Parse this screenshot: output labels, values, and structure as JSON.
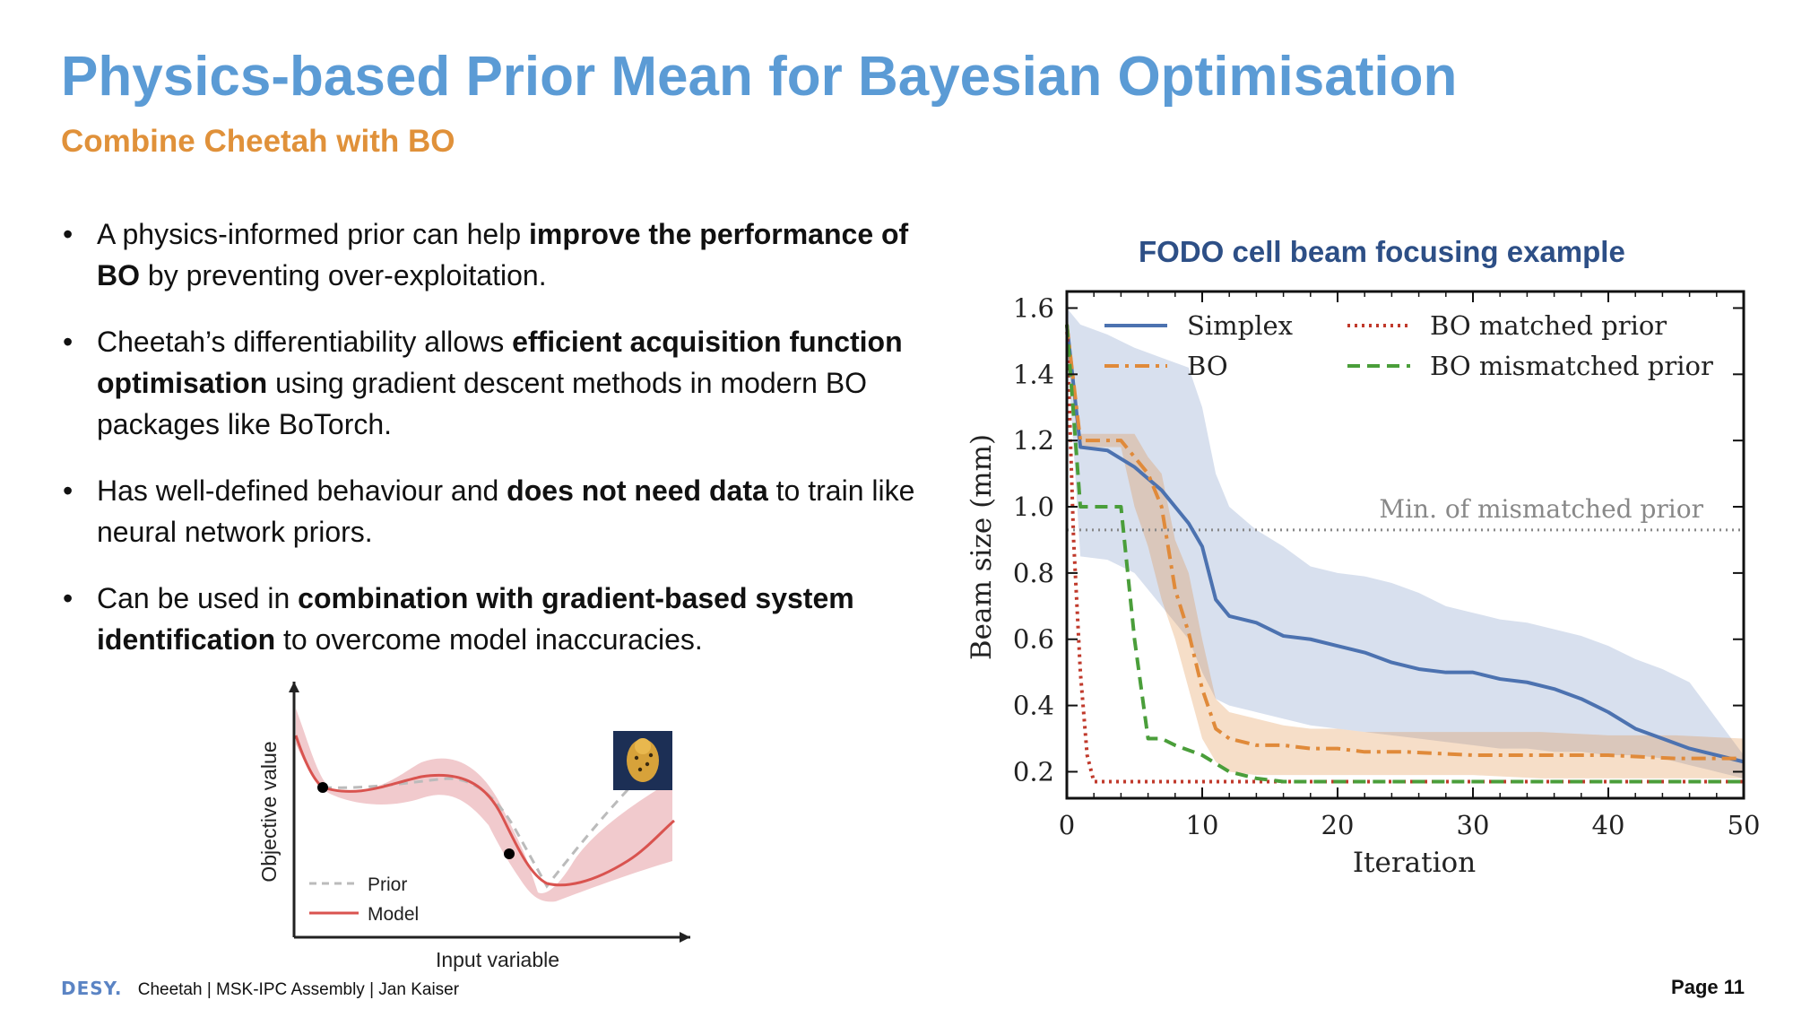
{
  "slide": {
    "title": "Physics-based Prior Mean for Bayesian Optimisation",
    "subtitle": "Combine Cheetah with BO",
    "bullets": [
      {
        "parts": [
          {
            "t": "A physics-informed prior can help ",
            "b": false
          },
          {
            "t": "improve the performance of BO",
            "b": true
          },
          {
            "t": " by preventing over-exploitation.",
            "b": false
          }
        ]
      },
      {
        "parts": [
          {
            "t": "Cheetah’s differentiability allows ",
            "b": false
          },
          {
            "t": "efficient acquisition function optimisation",
            "b": true
          },
          {
            "t": " using gradient descent methods in modern BO packages like BoTorch.",
            "b": false
          }
        ]
      },
      {
        "parts": [
          {
            "t": "Has well-defined behaviour and ",
            "b": false
          },
          {
            "t": "does not need data",
            "b": true
          },
          {
            "t": " to train like neural network priors.",
            "b": false
          }
        ]
      },
      {
        "parts": [
          {
            "t": "Can be used in ",
            "b": false
          },
          {
            "t": "combination with gradient-based system identification",
            "b": true
          },
          {
            "t": " to overcome model inaccuracies.",
            "b": false
          }
        ]
      }
    ],
    "bullet_symbol": "•",
    "footer": {
      "logo": "DESY.",
      "text": "Cheetah | MSK-IPC Assembly | Jan Kaiser"
    },
    "page": "Page 11"
  },
  "chart_data": [
    {
      "type": "line",
      "title": "FODO cell beam focusing example",
      "xlabel": "Iteration",
      "ylabel": "Beam size (mm)",
      "xlim": [
        0,
        50
      ],
      "ylim": [
        0.12,
        1.65
      ],
      "xticks": [
        0,
        10,
        20,
        30,
        40,
        50
      ],
      "yticks": [
        0.2,
        0.4,
        0.6,
        0.8,
        1.0,
        1.2,
        1.4,
        1.6
      ],
      "grid": false,
      "legend": "top",
      "hline": {
        "y": 0.93,
        "label": "Min. of mismatched prior",
        "color": "#888888"
      },
      "series": [
        {
          "name": "Simplex",
          "style": "solid",
          "color": "#4c72b0",
          "x": [
            0,
            1,
            3,
            5,
            7,
            9,
            10,
            11,
            12,
            14,
            16,
            18,
            20,
            22,
            24,
            26,
            28,
            30,
            32,
            34,
            36,
            38,
            40,
            42,
            44,
            46,
            48,
            50
          ],
          "y": [
            1.55,
            1.18,
            1.17,
            1.12,
            1.05,
            0.95,
            0.88,
            0.72,
            0.67,
            0.65,
            0.61,
            0.6,
            0.58,
            0.56,
            0.53,
            0.51,
            0.5,
            0.5,
            0.48,
            0.47,
            0.45,
            0.42,
            0.38,
            0.33,
            0.3,
            0.27,
            0.25,
            0.23
          ],
          "band_upper": [
            1.6,
            1.55,
            1.52,
            1.48,
            1.45,
            1.42,
            1.3,
            1.1,
            1.0,
            0.93,
            0.88,
            0.82,
            0.8,
            0.79,
            0.77,
            0.74,
            0.7,
            0.68,
            0.66,
            0.65,
            0.63,
            0.61,
            0.58,
            0.54,
            0.51,
            0.47,
            0.36,
            0.25
          ],
          "band_lower": [
            1.5,
            0.85,
            0.84,
            0.8,
            0.7,
            0.6,
            0.5,
            0.42,
            0.4,
            0.38,
            0.36,
            0.34,
            0.33,
            0.32,
            0.31,
            0.3,
            0.29,
            0.28,
            0.27,
            0.27,
            0.26,
            0.26,
            0.25,
            0.25,
            0.24,
            0.22,
            0.2,
            0.18
          ]
        },
        {
          "name": "BO",
          "style": "dashdot",
          "color": "#e08a3a",
          "x": [
            0,
            1,
            2,
            3,
            4,
            5,
            6,
            7,
            8,
            9,
            10,
            11,
            12,
            14,
            16,
            18,
            20,
            22,
            25,
            30,
            35,
            40,
            45,
            50
          ],
          "y": [
            1.55,
            1.2,
            1.2,
            1.2,
            1.2,
            1.15,
            1.1,
            1.0,
            0.75,
            0.62,
            0.45,
            0.33,
            0.3,
            0.28,
            0.28,
            0.27,
            0.27,
            0.26,
            0.26,
            0.25,
            0.25,
            0.25,
            0.24,
            0.24
          ],
          "band_upper": [
            1.6,
            1.22,
            1.22,
            1.22,
            1.22,
            1.22,
            1.15,
            1.1,
            0.9,
            0.8,
            0.6,
            0.42,
            0.38,
            0.36,
            0.34,
            0.33,
            0.33,
            0.32,
            0.32,
            0.32,
            0.32,
            0.31,
            0.31,
            0.3
          ],
          "band_lower": [
            1.5,
            1.18,
            1.18,
            1.18,
            1.18,
            1.0,
            0.88,
            0.72,
            0.6,
            0.45,
            0.3,
            0.23,
            0.2,
            0.19,
            0.19,
            0.19,
            0.19,
            0.19,
            0.19,
            0.19,
            0.18,
            0.18,
            0.18,
            0.18
          ]
        },
        {
          "name": "BO matched prior",
          "style": "dotted",
          "color": "#c0392b",
          "x": [
            0,
            0.5,
            1,
            1.5,
            2,
            3,
            10,
            20,
            30,
            40,
            50
          ],
          "y": [
            1.55,
            0.9,
            0.5,
            0.25,
            0.17,
            0.17,
            0.17,
            0.17,
            0.17,
            0.17,
            0.17
          ]
        },
        {
          "name": "BO mismatched prior",
          "style": "dashed",
          "color": "#4a9e3a",
          "x": [
            0,
            1,
            2,
            3,
            4,
            5,
            6,
            7,
            8,
            10,
            12,
            14,
            16,
            20,
            30,
            40,
            50
          ],
          "y": [
            1.55,
            1.0,
            1.0,
            1.0,
            1.0,
            0.6,
            0.3,
            0.3,
            0.28,
            0.25,
            0.2,
            0.18,
            0.17,
            0.17,
            0.17,
            0.17,
            0.17
          ]
        }
      ]
    },
    {
      "type": "line",
      "title": "",
      "xlabel": "Input variable",
      "ylabel": "Objective value",
      "grid": false,
      "legend": "bottom-left",
      "series": [
        {
          "name": "Prior",
          "style": "dashed",
          "color": "#bbbbbb"
        },
        {
          "name": "Model",
          "style": "solid",
          "color": "#d9534f"
        }
      ]
    }
  ]
}
